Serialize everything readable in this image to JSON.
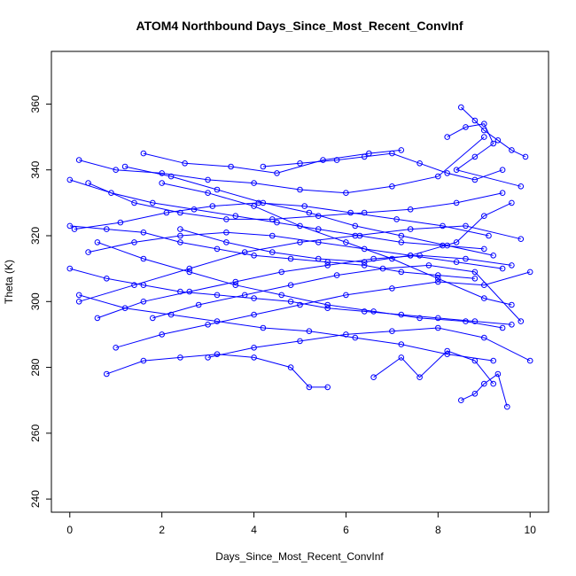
{
  "chart_data": {
    "type": "scatter",
    "title": "ATOM4 Northbound Days_Since_Most_Recent_ConvInf",
    "xlabel": "Days_Since_Most_Recent_ConvInf",
    "ylabel": "Theta (K)",
    "xlim": [
      -0.4,
      10.4
    ],
    "ylim": [
      236,
      376
    ],
    "x_ticks": [
      "0",
      "2",
      "4",
      "6",
      "8",
      "10"
    ],
    "y_ticks": [
      "240",
      "260",
      "280",
      "300",
      "320",
      "340",
      "360"
    ],
    "grid": false,
    "legend": "none",
    "style": "points connected by lines (R type='o')",
    "series": [
      {
        "values": [
          [
            0.2,
            343
          ],
          [
            1.0,
            340
          ],
          [
            2.0,
            339
          ],
          [
            3.0,
            337
          ],
          [
            4.0,
            336
          ],
          [
            5.0,
            334
          ],
          [
            6.0,
            333
          ],
          [
            7.0,
            335
          ],
          [
            8.0,
            338
          ],
          [
            9.0,
            350
          ]
        ]
      },
      {
        "values": [
          [
            1.6,
            345
          ],
          [
            2.5,
            342
          ],
          [
            3.5,
            341
          ],
          [
            4.5,
            339
          ],
          [
            5.5,
            343
          ],
          [
            6.5,
            345
          ],
          [
            7.2,
            346
          ]
        ]
      },
      {
        "values": [
          [
            0.0,
            337
          ],
          [
            0.9,
            333
          ],
          [
            1.8,
            330
          ],
          [
            2.7,
            328
          ],
          [
            3.6,
            326
          ],
          [
            4.5,
            324
          ],
          [
            5.4,
            322
          ],
          [
            6.3,
            320
          ],
          [
            7.2,
            318
          ],
          [
            8.1,
            317
          ],
          [
            9.0,
            316
          ]
        ]
      },
      {
        "values": [
          [
            0.0,
            323
          ],
          [
            0.8,
            322
          ],
          [
            1.6,
            321
          ],
          [
            2.4,
            318
          ],
          [
            3.2,
            316
          ],
          [
            4.0,
            314
          ],
          [
            4.8,
            313
          ],
          [
            5.6,
            312
          ],
          [
            6.4,
            311
          ],
          [
            7.2,
            309
          ],
          [
            8.0,
            308
          ],
          [
            8.8,
            307
          ]
        ]
      },
      {
        "values": [
          [
            0.0,
            310
          ],
          [
            0.8,
            307
          ],
          [
            1.6,
            305
          ],
          [
            2.4,
            303
          ],
          [
            3.2,
            302
          ],
          [
            4.0,
            301
          ],
          [
            4.8,
            300
          ],
          [
            5.6,
            298
          ],
          [
            6.4,
            297
          ],
          [
            7.2,
            296
          ],
          [
            8.0,
            295
          ],
          [
            8.8,
            294
          ],
          [
            9.6,
            293
          ]
        ]
      },
      {
        "values": [
          [
            0.2,
            302
          ],
          [
            1.2,
            298
          ],
          [
            2.2,
            296
          ],
          [
            3.2,
            294
          ],
          [
            4.2,
            292
          ],
          [
            5.2,
            291
          ],
          [
            6.2,
            289
          ],
          [
            7.2,
            287
          ],
          [
            8.2,
            284
          ],
          [
            9.2,
            282
          ]
        ]
      },
      {
        "values": [
          [
            0.8,
            278
          ],
          [
            1.6,
            282
          ],
          [
            2.4,
            283
          ],
          [
            3.2,
            284
          ],
          [
            4.0,
            283
          ],
          [
            4.8,
            280
          ],
          [
            5.2,
            274
          ],
          [
            5.6,
            274
          ]
        ]
      },
      {
        "values": [
          [
            8.5,
            359
          ],
          [
            8.8,
            355
          ],
          [
            9.0,
            352
          ],
          [
            9.3,
            349
          ],
          [
            9.6,
            346
          ],
          [
            9.9,
            344
          ]
        ]
      },
      {
        "values": [
          [
            8.5,
            270
          ],
          [
            8.8,
            272
          ],
          [
            9.0,
            275
          ],
          [
            9.3,
            278
          ],
          [
            9.5,
            268
          ]
        ]
      },
      {
        "values": [
          [
            0.4,
            336
          ],
          [
            1.4,
            330
          ],
          [
            2.4,
            327
          ],
          [
            3.4,
            325
          ],
          [
            4.4,
            325
          ],
          [
            5.4,
            326
          ],
          [
            6.4,
            327
          ],
          [
            7.4,
            328
          ],
          [
            8.4,
            330
          ],
          [
            9.4,
            333
          ]
        ]
      },
      {
        "values": [
          [
            0.4,
            315
          ],
          [
            1.4,
            318
          ],
          [
            2.4,
            320
          ],
          [
            3.4,
            321
          ],
          [
            4.4,
            320
          ],
          [
            5.4,
            318
          ],
          [
            6.4,
            316
          ],
          [
            7.4,
            314
          ],
          [
            8.4,
            312
          ],
          [
            9.4,
            310
          ]
        ]
      },
      {
        "values": [
          [
            0.6,
            295
          ],
          [
            1.6,
            300
          ],
          [
            2.6,
            303
          ],
          [
            3.6,
            306
          ],
          [
            4.6,
            309
          ],
          [
            5.6,
            311
          ],
          [
            6.6,
            313
          ],
          [
            7.6,
            314
          ],
          [
            8.6,
            313
          ],
          [
            9.6,
            311
          ]
        ]
      },
      {
        "values": [
          [
            1.0,
            286
          ],
          [
            2.0,
            290
          ],
          [
            3.0,
            293
          ],
          [
            4.0,
            296
          ],
          [
            5.0,
            299
          ],
          [
            6.0,
            302
          ],
          [
            7.0,
            304
          ],
          [
            8.0,
            306
          ],
          [
            9.0,
            305
          ],
          [
            10.0,
            309
          ]
        ]
      },
      {
        "values": [
          [
            1.2,
            341
          ],
          [
            2.2,
            338
          ],
          [
            3.2,
            334
          ],
          [
            4.2,
            330
          ],
          [
            5.2,
            327
          ],
          [
            6.2,
            323
          ],
          [
            7.2,
            320
          ],
          [
            8.2,
            317
          ],
          [
            9.2,
            314
          ]
        ]
      },
      {
        "values": [
          [
            0.1,
            322
          ],
          [
            1.1,
            324
          ],
          [
            2.1,
            327
          ],
          [
            3.1,
            329
          ],
          [
            4.1,
            330
          ],
          [
            5.1,
            329
          ],
          [
            6.1,
            327
          ],
          [
            7.1,
            325
          ],
          [
            8.1,
            323
          ],
          [
            9.1,
            320
          ]
        ]
      },
      {
        "values": [
          [
            1.8,
            295
          ],
          [
            2.8,
            299
          ],
          [
            3.8,
            302
          ],
          [
            4.8,
            305
          ],
          [
            5.8,
            308
          ],
          [
            6.8,
            310
          ],
          [
            7.8,
            311
          ],
          [
            8.8,
            309
          ],
          [
            9.8,
            294
          ]
        ]
      },
      {
        "values": [
          [
            2.0,
            336
          ],
          [
            3.0,
            333
          ],
          [
            4.0,
            329
          ],
          [
            5.0,
            323
          ],
          [
            6.0,
            318
          ],
          [
            7.0,
            313
          ],
          [
            8.0,
            307
          ],
          [
            9.0,
            301
          ],
          [
            9.6,
            299
          ]
        ]
      },
      {
        "values": [
          [
            0.2,
            300
          ],
          [
            1.4,
            305
          ],
          [
            2.6,
            310
          ],
          [
            3.8,
            315
          ],
          [
            5.0,
            318
          ],
          [
            6.2,
            320
          ],
          [
            7.4,
            322
          ],
          [
            8.6,
            323
          ],
          [
            9.8,
            319
          ]
        ]
      },
      {
        "values": [
          [
            3.0,
            283
          ],
          [
            4.0,
            286
          ],
          [
            5.0,
            288
          ],
          [
            6.0,
            290
          ],
          [
            7.0,
            291
          ],
          [
            8.0,
            292
          ],
          [
            9.0,
            289
          ],
          [
            10.0,
            282
          ]
        ]
      },
      {
        "values": [
          [
            6.6,
            277
          ],
          [
            7.2,
            283
          ],
          [
            7.6,
            277
          ],
          [
            8.2,
            285
          ],
          [
            8.8,
            282
          ],
          [
            9.2,
            275
          ]
        ]
      },
      {
        "values": [
          [
            4.2,
            341
          ],
          [
            5.0,
            342
          ],
          [
            5.8,
            343
          ],
          [
            6.4,
            344
          ],
          [
            7.0,
            345
          ],
          [
            7.6,
            342
          ],
          [
            8.2,
            339
          ],
          [
            8.8,
            337
          ],
          [
            9.4,
            340
          ]
        ]
      },
      {
        "values": [
          [
            0.6,
            318
          ],
          [
            1.6,
            313
          ],
          [
            2.6,
            309
          ],
          [
            3.6,
            305
          ],
          [
            4.6,
            302
          ],
          [
            5.6,
            299
          ],
          [
            6.6,
            297
          ],
          [
            7.6,
            295
          ],
          [
            8.6,
            294
          ],
          [
            9.4,
            292
          ]
        ]
      },
      {
        "values": [
          [
            2.4,
            322
          ],
          [
            3.4,
            318
          ],
          [
            4.4,
            315
          ],
          [
            5.4,
            313
          ],
          [
            6.4,
            312
          ],
          [
            7.4,
            314
          ],
          [
            8.4,
            318
          ],
          [
            9.0,
            326
          ],
          [
            9.6,
            330
          ]
        ]
      },
      {
        "values": [
          [
            8.2,
            350
          ],
          [
            8.6,
            353
          ],
          [
            9.0,
            354
          ],
          [
            9.2,
            348
          ],
          [
            8.8,
            344
          ],
          [
            8.4,
            340
          ],
          [
            9.8,
            335
          ]
        ]
      }
    ]
  },
  "colors": {
    "series": "#0000ff",
    "axis": "#000000",
    "background": "#ffffff"
  }
}
